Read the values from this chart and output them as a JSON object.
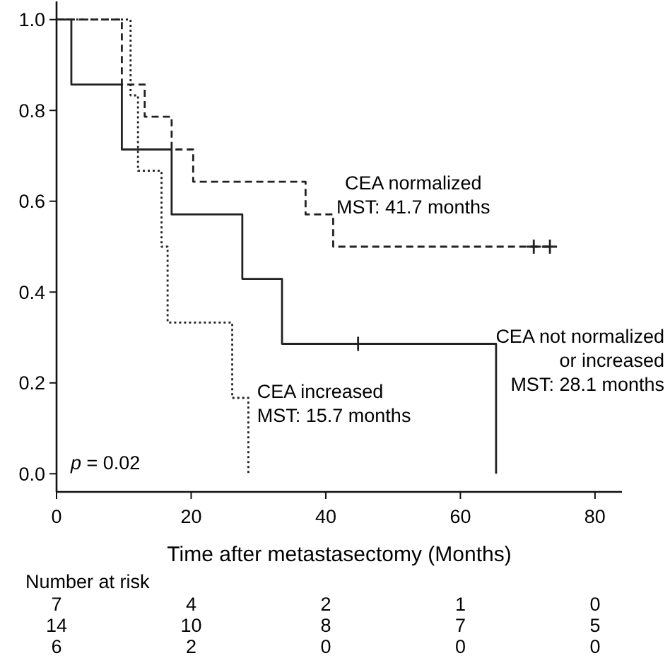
{
  "chart_data": {
    "type": "step",
    "xlabel": "Time after metastasectomy (Months)",
    "xlim": [
      0,
      84
    ],
    "xticks": [
      0,
      20,
      40,
      60,
      80
    ],
    "ylim": [
      -0.04,
      1.04
    ],
    "yticks": [
      {
        "value": 0,
        "label": "0.0"
      },
      {
        "value": 0.2,
        "label": "0.2"
      },
      {
        "value": 0.4,
        "label": "0.4"
      },
      {
        "value": 0.6,
        "label": "0.6"
      },
      {
        "value": 0.8,
        "label": "0.8"
      },
      {
        "value": 1,
        "label": "1.0"
      }
    ],
    "grid": false,
    "series": [
      {
        "name": "CEA not normalized or increased",
        "color": "#222222",
        "line_style": "solid",
        "x": [
          0,
          2.2,
          9.7,
          17.1,
          27.6,
          33.5,
          65.3
        ],
        "values": [
          1,
          0.857,
          0.714,
          0.571,
          0.429,
          0.286,
          0
        ]
      },
      {
        "name": "CEA normalized",
        "color": "#222222",
        "line_style": "dashed",
        "x": [
          0,
          9.7,
          13.1,
          17.1,
          20.3,
          37,
          41.1,
          73.8
        ],
        "values": [
          1,
          0.857,
          0.786,
          0.714,
          0.643,
          0.571,
          0.5,
          0.5
        ]
      },
      {
        "name": "CEA increased",
        "color": "#222222",
        "line_style": "dotted",
        "x": [
          0,
          11,
          12.1,
          15.6,
          16.5,
          26.1,
          28.5
        ],
        "values": [
          1,
          0.833,
          0.667,
          0.5,
          0.333,
          0.167,
          0
        ]
      },
      {
        "type": "scatter",
        "marker": "cross",
        "color": "#222222",
        "x": [
          44.8,
          70.9,
          73.3
        ],
        "values": [
          0.286,
          0.5,
          0.5
        ]
      }
    ],
    "annotations": [
      "MST: 28.1 months",
      "MST: 41.7 months",
      "MST: 15.7 months",
      "p = 0.02",
      "Number at risk",
      "7 4 2 1 0",
      "14 10 8 7 5",
      "6 2 0 0 0"
    ]
  }
}
